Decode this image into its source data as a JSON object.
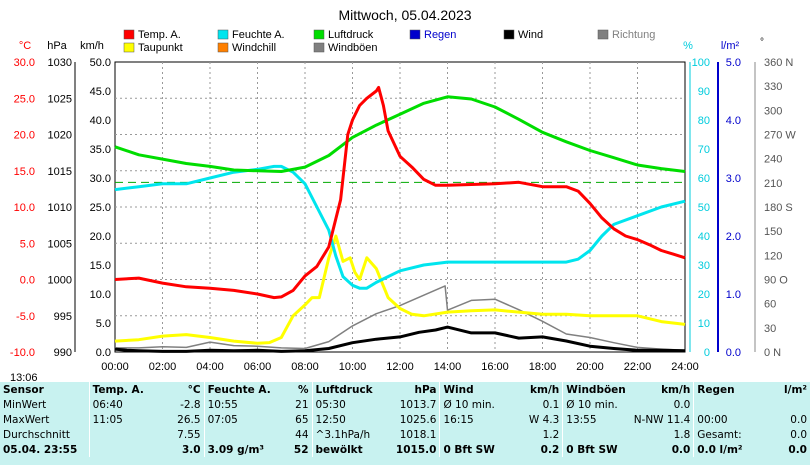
{
  "title": "Mittwoch, 05.04.2023",
  "legend": [
    {
      "label": "Temp. A.",
      "color": "#ff0000"
    },
    {
      "label": "Feuchte A.",
      "color": "#00e5ee"
    },
    {
      "label": "Luftdruck",
      "color": "#00dd00"
    },
    {
      "label": "Regen",
      "color": "#0000cc"
    },
    {
      "label": "Wind",
      "color": "#000000"
    },
    {
      "label": "Richtung",
      "color": "#808080"
    },
    {
      "label": "Taupunkt",
      "color": "#ffff00"
    },
    {
      "label": "Windchill",
      "color": "#ff8000"
    },
    {
      "label": "Windböen",
      "color": "#808080"
    }
  ],
  "axis_units": {
    "temp": "°C",
    "press": "hPa",
    "wind": "km/h",
    "hum": "%",
    "rain": "l/m²",
    "dir": "°"
  },
  "timestamp": "13:06",
  "chart_data": {
    "type": "line",
    "x_ticks": [
      "00:00",
      "02:00",
      "04:00",
      "06:00",
      "08:00",
      "10:00",
      "12:00",
      "14:00",
      "16:00",
      "18:00",
      "20:00",
      "22:00",
      "24:00"
    ],
    "axes": {
      "temp": {
        "range": [
          -10,
          30
        ],
        "ticks": [
          "30.0",
          "25.0",
          "20.0",
          "15.0",
          "10.0",
          "5.0",
          "0.0",
          "-5.0",
          "-10.0"
        ]
      },
      "press": {
        "range": [
          990,
          1030
        ],
        "ticks": [
          "1030",
          "1025",
          "1020",
          "1015",
          "1010",
          "1005",
          "1000",
          "995",
          "990"
        ]
      },
      "wind": {
        "range": [
          0,
          50
        ],
        "ticks": [
          "50.0",
          "45.0",
          "40.0",
          "35.0",
          "30.0",
          "25.0",
          "20.0",
          "15.0",
          "10.0",
          "5.0",
          "0.0"
        ]
      },
      "hum": {
        "range": [
          0,
          100
        ],
        "ticks": [
          "100",
          "90",
          "80",
          "70",
          "60",
          "50",
          "40",
          "30",
          "20",
          "10",
          "0"
        ]
      },
      "rain": {
        "range": [
          0,
          5
        ],
        "ticks": [
          "5.0",
          "4.0",
          "3.0",
          "2.0",
          "1.0",
          "0.0"
        ]
      },
      "dir": {
        "range": [
          0,
          360
        ],
        "ticks": [
          "360 N",
          "330",
          "300",
          "270 W",
          "240",
          "210",
          "180 S",
          "150",
          "120",
          "90 O",
          "60",
          "30",
          "0 N"
        ]
      }
    },
    "series": [
      {
        "name": "Temp. A.",
        "unit": "°C",
        "x": [
          0,
          1,
          2,
          3,
          4,
          5,
          6,
          6.7,
          7,
          7.5,
          8,
          8.5,
          9,
          9.5,
          9.8,
          10,
          10.3,
          10.6,
          11,
          11.1,
          11.3,
          11.5,
          12,
          12.5,
          13,
          13.5,
          14,
          16,
          17,
          18,
          19,
          19.5,
          20,
          20.5,
          21,
          21.5,
          22,
          22.5,
          23,
          23.5,
          24
        ],
        "y": [
          0.0,
          0.2,
          -0.5,
          -1.0,
          -1.2,
          -1.5,
          -2.0,
          -2.5,
          -2.4,
          -1.5,
          0.5,
          1.8,
          4.5,
          11.0,
          20.0,
          22.0,
          24.0,
          25.0,
          26.0,
          26.5,
          24.0,
          20.5,
          17.0,
          15.5,
          13.8,
          13.0,
          13.0,
          13.2,
          13.4,
          12.8,
          12.8,
          12.2,
          10.5,
          8.5,
          7.0,
          6.0,
          5.5,
          4.8,
          4.0,
          3.5,
          3.0
        ]
      },
      {
        "name": "Feuchte A.",
        "unit": "%",
        "x": [
          0,
          1,
          2,
          3,
          4,
          5,
          6,
          6.7,
          7,
          7.5,
          8,
          8.5,
          9,
          9.3,
          9.6,
          10,
          10.3,
          10.6,
          11,
          11.5,
          12,
          13,
          14,
          15,
          16,
          17,
          18,
          19,
          19.5,
          20,
          20.5,
          21,
          22,
          23,
          24
        ],
        "y": [
          56,
          57,
          58,
          58,
          60,
          62,
          63,
          64,
          64,
          62,
          58,
          50,
          42,
          33,
          26,
          23,
          22,
          22,
          24,
          26,
          28,
          30,
          31,
          31,
          31,
          31,
          31,
          31,
          32,
          35,
          40,
          44,
          47,
          50,
          52
        ]
      },
      {
        "name": "Taupunkt",
        "unit": "°C",
        "x": [
          0,
          1,
          2,
          3,
          4,
          5,
          6,
          6.5,
          7,
          7.5,
          8,
          8.3,
          8.6,
          9,
          9.3,
          9.6,
          9.9,
          10.1,
          10.3,
          10.6,
          11,
          11.5,
          12,
          12.5,
          13,
          14,
          15,
          16,
          17,
          18,
          19,
          20,
          21,
          22,
          23,
          24
        ],
        "y": [
          -8.5,
          -8.3,
          -7.8,
          -7.6,
          -8.0,
          -8.5,
          -8.8,
          -8.7,
          -8.0,
          -5.0,
          -3.5,
          -2.5,
          -2.5,
          3.0,
          6.0,
          2.5,
          3.0,
          1.0,
          0.0,
          3.0,
          1.5,
          -2.5,
          -4.0,
          -4.8,
          -5.0,
          -4.5,
          -4.3,
          -4.2,
          -4.5,
          -4.8,
          -4.8,
          -5.0,
          -5.0,
          -5.0,
          -5.8,
          -6.2
        ]
      },
      {
        "name": "Luftdruck",
        "unit": "hPa",
        "x": [
          0,
          1,
          2,
          3,
          4,
          5,
          6,
          7,
          8,
          9,
          10,
          11,
          12,
          13,
          14,
          15,
          16,
          17,
          18,
          19,
          20,
          21,
          22,
          23,
          24
        ],
        "y": [
          1018.3,
          1017.2,
          1016.6,
          1016.0,
          1015.6,
          1015.1,
          1015.0,
          1014.9,
          1015.5,
          1017.1,
          1019.6,
          1021.3,
          1022.8,
          1024.3,
          1025.2,
          1024.9,
          1023.8,
          1022.1,
          1020.3,
          1019.0,
          1017.8,
          1016.8,
          1015.8,
          1015.3,
          1014.9
        ]
      },
      {
        "name": "Wind",
        "unit": "km/h",
        "x": [
          0,
          0.5,
          1,
          2,
          3,
          4,
          5,
          6,
          7,
          8,
          9,
          10,
          11,
          12,
          12.8,
          13.5,
          14,
          15,
          16,
          17,
          18,
          19,
          20,
          21,
          22,
          23,
          24
        ],
        "y": [
          0.5,
          0.3,
          0.2,
          0.1,
          0.1,
          0.3,
          0.2,
          0.3,
          0.1,
          0.2,
          0.6,
          1.6,
          2.2,
          2.6,
          3.4,
          3.8,
          4.3,
          3.3,
          3.3,
          2.4,
          2.6,
          1.9,
          1.0,
          0.6,
          0.3,
          0.3,
          0.2
        ]
      },
      {
        "name": "Windböen",
        "unit": "km/h",
        "x": [
          0,
          1,
          2,
          3,
          4,
          5,
          6,
          7,
          8,
          9,
          10,
          11,
          12,
          13,
          13.9,
          14,
          15,
          16,
          17,
          18,
          19,
          20,
          21,
          22,
          23,
          24
        ],
        "y": [
          0.7,
          0.7,
          0.9,
          0.8,
          1.7,
          1.1,
          1.0,
          0.7,
          0.6,
          1.8,
          4.5,
          6.6,
          8.0,
          9.8,
          11.4,
          7.2,
          8.9,
          9.1,
          7.3,
          5.3,
          3.1,
          2.5,
          1.6,
          0.8,
          0.5,
          0.3
        ]
      }
    ],
    "reference_line": {
      "axis": "hum",
      "value": 58.5,
      "style": "dashed",
      "color": "#00aa00"
    }
  },
  "stats": {
    "headers": [
      "Sensor",
      "Temp. A.",
      "°C",
      "Feuchte A.",
      "%",
      "Luftdruck",
      "hPa",
      "Wind",
      "km/h",
      "Windböen",
      "km/h",
      "Regen",
      "l/m²"
    ],
    "rows": [
      [
        "MinWert",
        "06:40",
        "-2.8",
        "10:55",
        "21",
        "05:30",
        "1013.7",
        "Ø 10 min.",
        "0.1",
        "Ø 10 min.",
        "0.0",
        "",
        ""
      ],
      [
        "MaxWert",
        "11:05",
        "26.5",
        "07:05",
        "65",
        "12:50",
        "1025.6",
        "16:15",
        "W 4.3",
        "13:55",
        "N-NW 11.4",
        "00:00",
        "0.0"
      ],
      [
        "Durchschnitt",
        "",
        "7.55",
        "",
        "44",
        "^3.1hPa/h",
        "1018.1",
        "",
        "1.2",
        "",
        "1.8",
        "Gesamt:",
        "0.0"
      ],
      [
        "05.04. 23:55",
        "",
        "3.0",
        "3.09 g/m³",
        "52",
        "bewölkt",
        "1015.0",
        "0 Bft SW",
        "0.2",
        "0 Bft SW",
        "0.0",
        "0.0 l/m²",
        "0.0"
      ]
    ]
  }
}
